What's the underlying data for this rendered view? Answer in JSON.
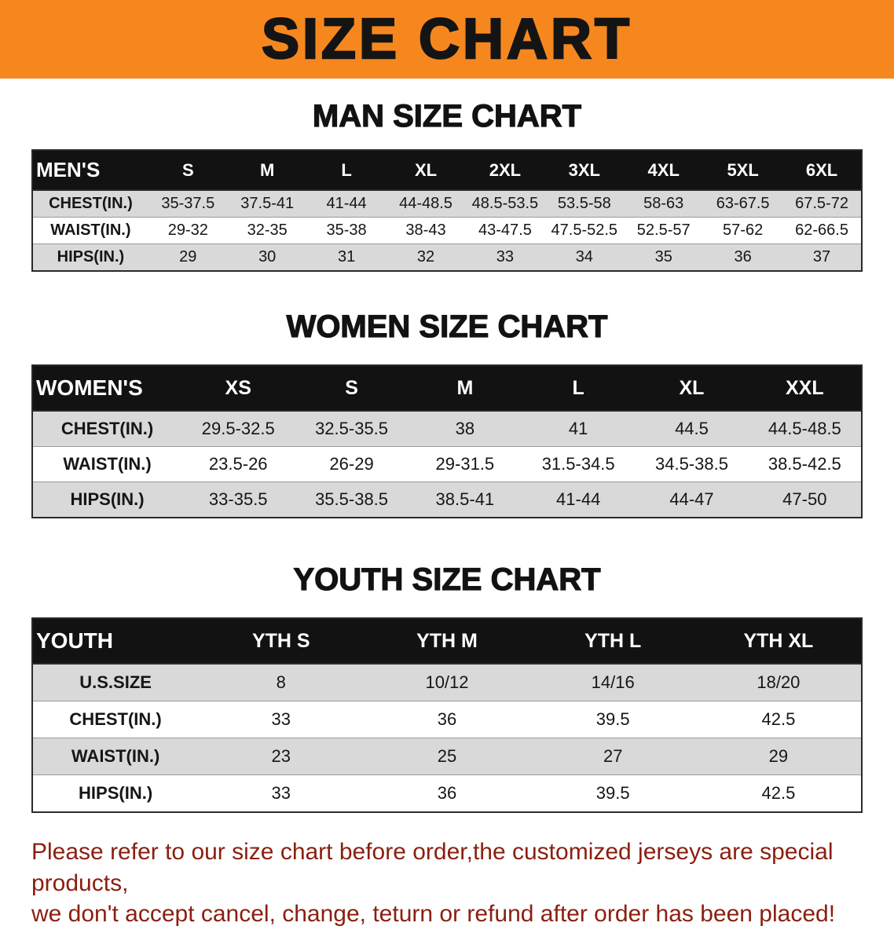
{
  "colors": {
    "banner_bg": "#f6871f",
    "header_bg": "#121212",
    "stripe_bg": "#d9d9d9",
    "notice_color": "#8a1f10"
  },
  "banner": {
    "title": "SIZE CHART"
  },
  "sections": [
    {
      "id": "men",
      "heading": "MAN SIZE CHART",
      "label_col_width": "14%",
      "header": [
        "MEN'S",
        "S",
        "M",
        "L",
        "XL",
        "2XL",
        "3XL",
        "4XL",
        "5XL",
        "6XL"
      ],
      "rows": [
        [
          "CHEST(IN.)",
          "35-37.5",
          "37.5-41",
          "41-44",
          "44-48.5",
          "48.5-53.5",
          "53.5-58",
          "58-63",
          "63-67.5",
          "67.5-72"
        ],
        [
          "WAIST(IN.)",
          "29-32",
          "32-35",
          "35-38",
          "38-43",
          "43-47.5",
          "47.5-52.5",
          "52.5-57",
          "57-62",
          "62-66.5"
        ],
        [
          "HIPS(IN.)",
          "29",
          "30",
          "31",
          "32",
          "33",
          "34",
          "35",
          "36",
          "37"
        ]
      ]
    },
    {
      "id": "women",
      "heading": "WOMEN SIZE CHART",
      "label_col_width": "18%",
      "header": [
        "WOMEN'S",
        "XS",
        "S",
        "M",
        "L",
        "XL",
        "XXL"
      ],
      "rows": [
        [
          "CHEST(IN.)",
          "29.5-32.5",
          "32.5-35.5",
          "38",
          "41",
          "44.5",
          "44.5-48.5"
        ],
        [
          "WAIST(IN.)",
          "23.5-26",
          "26-29",
          "29-31.5",
          "31.5-34.5",
          "34.5-38.5",
          "38.5-42.5"
        ],
        [
          "HIPS(IN.)",
          "33-35.5",
          "35.5-38.5",
          "38.5-41",
          "41-44",
          "44-47",
          "47-50"
        ]
      ]
    },
    {
      "id": "youth",
      "heading": "YOUTH SIZE CHART",
      "label_col_width": "20%",
      "header": [
        "YOUTH",
        "YTH S",
        "YTH M",
        "YTH L",
        "YTH XL"
      ],
      "rows": [
        [
          "U.S.SIZE",
          "8",
          "10/12",
          "14/16",
          "18/20"
        ],
        [
          "CHEST(IN.)",
          "33",
          "36",
          "39.5",
          "42.5"
        ],
        [
          "WAIST(IN.)",
          "23",
          "25",
          "27",
          "29"
        ],
        [
          "HIPS(IN.)",
          "33",
          "36",
          "39.5",
          "42.5"
        ]
      ]
    }
  ],
  "footer": {
    "lines": [
      "Please refer to our size chart before order,the customized jerseys are special products,",
      "we don't accept cancel, change, teturn or refund after order has been placed!"
    ]
  }
}
